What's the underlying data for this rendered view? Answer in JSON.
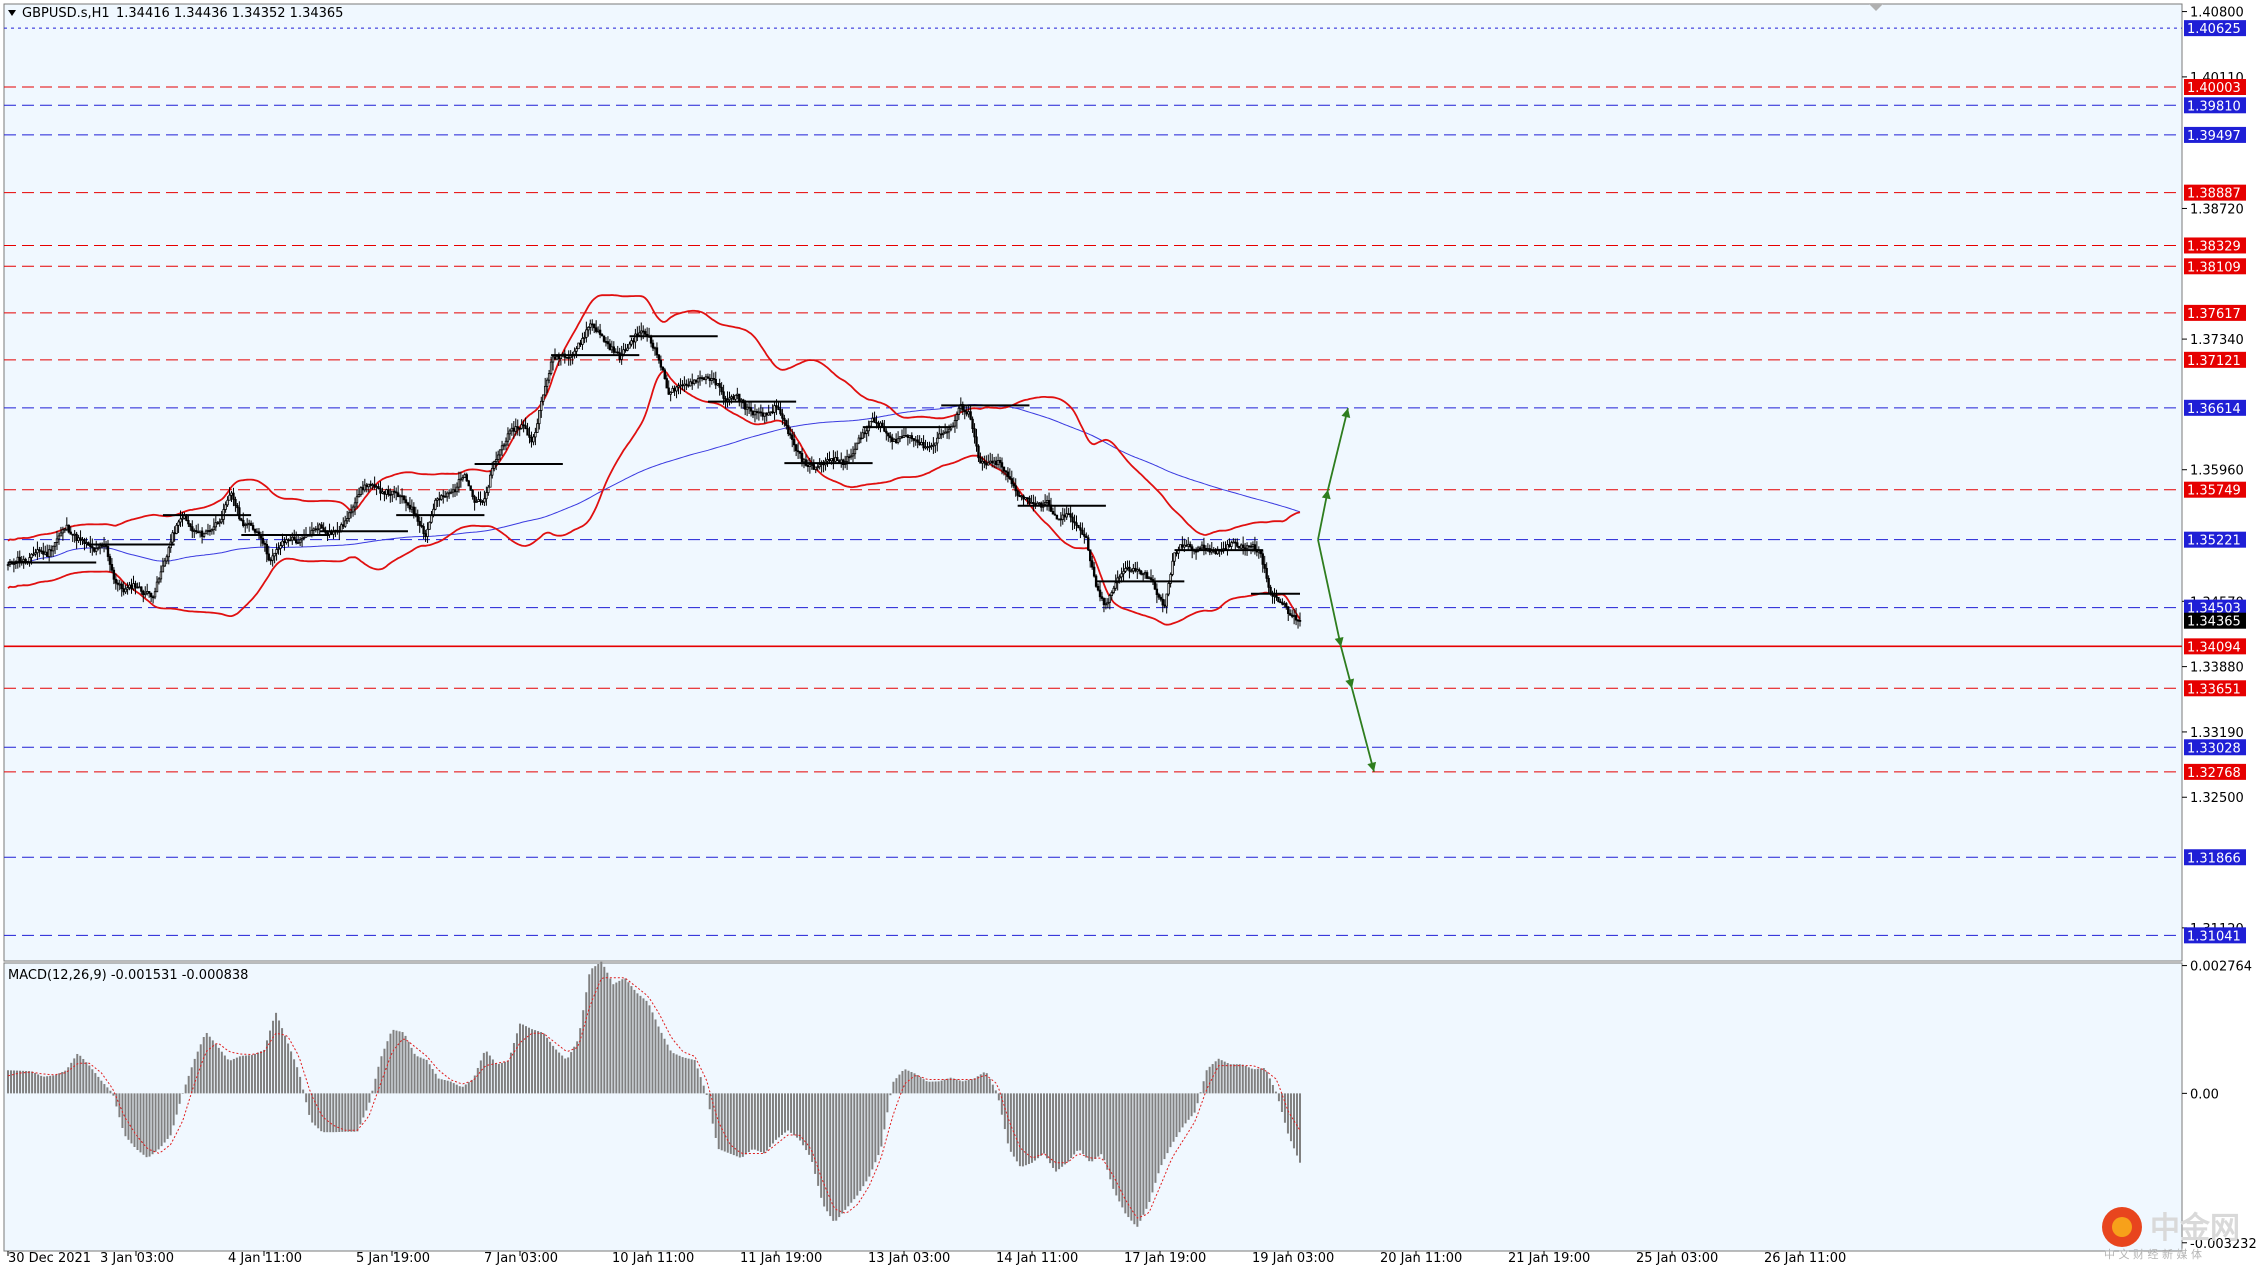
{
  "header": {
    "symbol": "GBPUSD.s,H1",
    "ohlc": "1.34416 1.34436 1.34352 1.34365"
  },
  "macd_header": {
    "label": "MACD(12,26,9) -0.001531 -0.000838"
  },
  "colors": {
    "background": "#f0f8ff",
    "red_level": "#e60000",
    "blue_level": "#1f1fd6",
    "bands": "#e01010",
    "ma": "#3a3ae0",
    "arrow": "#2e7d1e",
    "candle": "#000000"
  },
  "watermark": {
    "text": "中金网",
    "subtext": "中 文 财 经 新 媒 体"
  },
  "chart_data": [
    {
      "type": "candlestick",
      "title": "GBPUSD.s,H1",
      "ylim": [
        1.3077,
        1.4088
      ],
      "y_ticks": [
        1.408,
        1.4011,
        1.3872,
        1.3734,
        1.3596,
        1.3457,
        1.3388,
        1.3319,
        1.325,
        1.3112
      ],
      "x_tick_labels": [
        "30 Dec 2021",
        "3 Jan 03:00",
        "4 Jan 11:00",
        "5 Jan 19:00",
        "7 Jan 03:00",
        "10 Jan 11:00",
        "11 Jan 19:00",
        "13 Jan 03:00",
        "14 Jan 11:00",
        "17 Jan 19:00",
        "19 Jan 03:00",
        "20 Jan 11:00",
        "21 Jan 19:00",
        "25 Jan 03:00",
        "26 Jan 11:00"
      ],
      "current_price": 1.34365,
      "levels": [
        {
          "price": 1.40625,
          "color": "blue",
          "style": "dotted"
        },
        {
          "price": 1.40003,
          "color": "red",
          "style": "dashed"
        },
        {
          "price": 1.3981,
          "color": "blue",
          "style": "dashed"
        },
        {
          "price": 1.39497,
          "color": "blue",
          "style": "dashed"
        },
        {
          "price": 1.38887,
          "color": "red",
          "style": "dashed"
        },
        {
          "price": 1.38329,
          "color": "red",
          "style": "dashed"
        },
        {
          "price": 1.38109,
          "color": "red",
          "style": "dashed"
        },
        {
          "price": 1.37617,
          "color": "red",
          "style": "dashed"
        },
        {
          "price": 1.37121,
          "color": "red",
          "style": "dashed"
        },
        {
          "price": 1.36614,
          "color": "blue",
          "style": "dashed"
        },
        {
          "price": 1.35749,
          "color": "red",
          "style": "dashed"
        },
        {
          "price": 1.35221,
          "color": "blue",
          "style": "dashed"
        },
        {
          "price": 1.34503,
          "color": "blue",
          "style": "dashed"
        },
        {
          "price": 1.34094,
          "color": "red",
          "style": "solid"
        },
        {
          "price": 1.33651,
          "color": "red",
          "style": "dashed"
        },
        {
          "price": 1.33028,
          "color": "blue",
          "style": "dashed"
        },
        {
          "price": 1.32768,
          "color": "red",
          "style": "dashed"
        },
        {
          "price": 1.31866,
          "color": "blue",
          "style": "dashed"
        },
        {
          "price": 1.31041,
          "color": "blue",
          "style": "dashed"
        }
      ],
      "level_labels": [
        "1.40625",
        "1.40003",
        "1.39810",
        "1.39497",
        "1.38887",
        "1.38329",
        "1.38109",
        "1.37617",
        "1.37121",
        "1.36614",
        "1.35749",
        "1.35221",
        "1.34503",
        "1.34094",
        "1.33651",
        "1.33028",
        "1.32768",
        "1.31866",
        "1.31041"
      ],
      "current_label": "1.34365",
      "close_path": [
        1.3495,
        1.3502,
        1.3498,
        1.3512,
        1.3506,
        1.3522,
        1.3536,
        1.3524,
        1.3518,
        1.351,
        1.3517,
        1.3478,
        1.3468,
        1.3475,
        1.3466,
        1.3464,
        1.3495,
        1.3528,
        1.3548,
        1.3531,
        1.3528,
        1.3534,
        1.3546,
        1.3572,
        1.3541,
        1.3536,
        1.3527,
        1.3499,
        1.3516,
        1.3524,
        1.3519,
        1.3528,
        1.3537,
        1.3529,
        1.3531,
        1.3545,
        1.3571,
        1.3581,
        1.3575,
        1.3572,
        1.357,
        1.3562,
        1.3548,
        1.3526,
        1.3563,
        1.3568,
        1.3575,
        1.3594,
        1.3563,
        1.3561,
        1.3602,
        1.3624,
        1.3639,
        1.3643,
        1.3625,
        1.3671,
        1.3712,
        1.3718,
        1.3717,
        1.3731,
        1.3752,
        1.3738,
        1.3725,
        1.3715,
        1.3729,
        1.3742,
        1.3737,
        1.3713,
        1.3678,
        1.3682,
        1.3687,
        1.3692,
        1.3694,
        1.3686,
        1.3668,
        1.3675,
        1.3661,
        1.3655,
        1.3653,
        1.3662,
        1.3645,
        1.3619,
        1.3603,
        1.3598,
        1.3604,
        1.3607,
        1.3603,
        1.3616,
        1.3634,
        1.3648,
        1.3641,
        1.3625,
        1.3631,
        1.3632,
        1.3622,
        1.362,
        1.3634,
        1.3637,
        1.3664,
        1.3654,
        1.3603,
        1.3602,
        1.3604,
        1.3587,
        1.357,
        1.3564,
        1.3558,
        1.3561,
        1.3542,
        1.3549,
        1.3539,
        1.3522,
        1.3471,
        1.3451,
        1.3478,
        1.3491,
        1.349,
        1.3486,
        1.3474,
        1.3448,
        1.3505,
        1.3518,
        1.3511,
        1.3514,
        1.3511,
        1.3508,
        1.3521,
        1.3514,
        1.3518,
        1.3505,
        1.3465,
        1.3458,
        1.3442,
        1.3437
      ]
    },
    {
      "type": "bar",
      "title": "MACD(12,26,9) -0.001531 -0.000838",
      "ylim": [
        -0.00341,
        0.00282
      ],
      "y_ticks": [
        0.002764,
        0.0,
        -0.003232
      ],
      "y_tick_labels": [
        "0.002764",
        "0.00",
        "-0.003232"
      ],
      "series": [
        {
          "name": "MACD(12,26,9)",
          "values": [
            0.0005,
            0.00049,
            0.00048,
            0.00036,
            0.00039,
            0.0005,
            0.00087,
            0.0006,
            0.00028,
            0.0,
            -0.0009,
            -0.0012,
            -0.0014,
            -0.0012,
            -0.0009,
            0.0,
            0.00072,
            0.00133,
            0.00102,
            0.0007,
            0.00081,
            0.00083,
            0.00094,
            0.00176,
            0.00112,
            0.00046,
            -0.0006,
            -0.00084,
            -0.00084,
            -0.00083,
            -0.00083,
            -0.00025,
            0.00075,
            0.00138,
            0.00132,
            0.00082,
            0.00072,
            0.00032,
            0.00026,
            0.00013,
            0.00032,
            0.00095,
            0.00062,
            0.00071,
            0.00152,
            0.00139,
            0.00131,
            0.00097,
            0.00072,
            0.00117,
            0.00267,
            0.00285,
            0.00236,
            0.0025,
            0.00218,
            0.00197,
            0.00138,
            0.00089,
            0.00078,
            0.00072,
            0.0,
            -0.0012,
            -0.0013,
            -0.0014,
            -0.0012,
            -0.0013,
            -0.001,
            -0.0008,
            -0.001,
            -0.0014,
            -0.0024,
            -0.0028,
            -0.0025,
            -0.0022,
            -0.0018,
            -0.0012,
            0.00023,
            0.00053,
            0.00042,
            0.00025,
            0.00026,
            0.00034,
            0.00026,
            0.00032,
            0.00048,
            0.0,
            -0.0012,
            -0.0016,
            -0.0015,
            -0.0013,
            -0.0017,
            -0.0015,
            -0.0012,
            -0.0015,
            -0.0013,
            -0.0021,
            -0.0026,
            -0.0029,
            -0.0024,
            -0.0016,
            -0.0011,
            -0.0007,
            -0.0004,
            0.00052,
            0.00075,
            0.00063,
            0.00063,
            0.00052,
            0.00055,
            0.0,
            -0.0009,
            -0.0015
          ]
        },
        {
          "name": "Signal",
          "values": [
            0.00038,
            0.00044,
            0.00046,
            0.00042,
            0.0004,
            0.00045,
            0.00065,
            0.00065,
            0.00045,
            0.0001,
            -0.0005,
            -0.0009,
            -0.0012,
            -0.0013,
            -0.0011,
            -0.0006,
            0.0002,
            0.0009,
            0.0011,
            0.0009,
            0.00085,
            0.00084,
            0.0009,
            0.0013,
            0.00125,
            0.0008,
            0.0,
            -0.0005,
            -0.0007,
            -0.0008,
            -0.0008,
            -0.0005,
            0.0002,
            0.0009,
            0.0012,
            0.001,
            0.0008,
            0.0005,
            0.0003,
            0.0002,
            0.00028,
            0.0006,
            0.00065,
            0.0007,
            0.0011,
            0.0013,
            0.0013,
            0.0011,
            0.0009,
            0.001,
            0.0019,
            0.0025,
            0.0025,
            0.0025,
            0.0023,
            0.0021,
            0.0017,
            0.0012,
            0.0009,
            0.0008,
            0.0003,
            -0.0006,
            -0.0011,
            -0.0013,
            -0.0013,
            -0.0013,
            -0.0011,
            -0.0009,
            -0.0009,
            -0.0012,
            -0.0019,
            -0.0025,
            -0.0026,
            -0.0024,
            -0.002,
            -0.0014,
            -0.0005,
            0.0002,
            0.0004,
            0.0003,
            0.0003,
            0.0003,
            0.0003,
            0.0003,
            0.0004,
            0.0002,
            -0.0006,
            -0.0012,
            -0.0014,
            -0.0013,
            -0.0015,
            -0.0015,
            -0.0013,
            -0.0014,
            -0.0014,
            -0.0018,
            -0.0023,
            -0.0027,
            -0.0026,
            -0.002,
            -0.0014,
            -0.001,
            -0.0006,
            0.0001,
            0.0006,
            0.0006,
            0.0006,
            0.0006,
            0.0005,
            0.0003,
            -0.0004,
            -0.0008
          ]
        }
      ]
    }
  ]
}
